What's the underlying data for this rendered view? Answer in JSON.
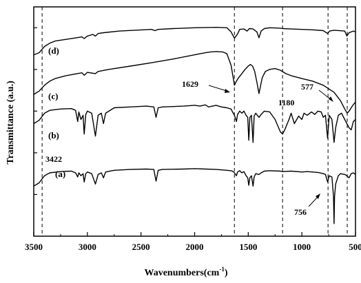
{
  "chart_data": {
    "type": "line",
    "xlabel": "Wavenumbers(cm",
    "xlabel_sup": "-1",
    "xlabel_close": ")",
    "ylabel": "Transmittance (a.u.)",
    "xlim": [
      3500,
      500
    ],
    "x_reversed": true,
    "xticks": [
      3500,
      3000,
      2500,
      2000,
      1500,
      1000,
      500
    ],
    "yticks_unlabeled": true,
    "reference_lines": [
      3422,
      1629,
      1180,
      756,
      577
    ],
    "annotations": [
      {
        "text": "3422"
      },
      {
        "text": "1629"
      },
      {
        "text": "1180"
      },
      {
        "text": "577"
      },
      {
        "text": "756"
      }
    ],
    "series": [
      {
        "name": "(d)",
        "points": [
          [
            3500,
            4.35
          ],
          [
            3450,
            4.4
          ],
          [
            3400,
            4.55
          ],
          [
            3350,
            4.63
          ],
          [
            3300,
            4.68
          ],
          [
            3200,
            4.72
          ],
          [
            3100,
            4.76
          ],
          [
            3050,
            4.78
          ],
          [
            3030,
            4.74
          ],
          [
            3000,
            4.8
          ],
          [
            2950,
            4.84
          ],
          [
            2925,
            4.8
          ],
          [
            2900,
            4.86
          ],
          [
            2850,
            4.88
          ],
          [
            2700,
            4.92
          ],
          [
            2400,
            4.96
          ],
          [
            2370,
            4.93
          ],
          [
            2340,
            4.96
          ],
          [
            2200,
            4.98
          ],
          [
            2000,
            5.0
          ],
          [
            1800,
            5.01
          ],
          [
            1700,
            5.0
          ],
          [
            1660,
            4.9
          ],
          [
            1629,
            4.75
          ],
          [
            1600,
            4.85
          ],
          [
            1580,
            4.96
          ],
          [
            1540,
            4.97
          ],
          [
            1510,
            4.92
          ],
          [
            1490,
            4.98
          ],
          [
            1455,
            4.97
          ],
          [
            1420,
            4.9
          ],
          [
            1400,
            4.76
          ],
          [
            1380,
            4.92
          ],
          [
            1350,
            4.98
          ],
          [
            1300,
            5.0
          ],
          [
            1200,
            4.99
          ],
          [
            1180,
            4.98
          ],
          [
            1100,
            4.97
          ],
          [
            1000,
            4.96
          ],
          [
            900,
            4.95
          ],
          [
            800,
            4.93
          ],
          [
            760,
            4.86
          ],
          [
            740,
            4.92
          ],
          [
            700,
            4.94
          ],
          [
            600,
            4.92
          ],
          [
            580,
            4.8
          ],
          [
            560,
            4.88
          ],
          [
            520,
            4.92
          ],
          [
            500,
            4.9
          ]
        ]
      },
      {
        "name": "(c)",
        "points": [
          [
            3500,
            3.4
          ],
          [
            3450,
            3.48
          ],
          [
            3400,
            3.62
          ],
          [
            3350,
            3.72
          ],
          [
            3300,
            3.78
          ],
          [
            3200,
            3.85
          ],
          [
            3050,
            3.92
          ],
          [
            3030,
            3.86
          ],
          [
            3000,
            3.93
          ],
          [
            2925,
            3.9
          ],
          [
            2900,
            3.95
          ],
          [
            2800,
            4.0
          ],
          [
            2600,
            4.08
          ],
          [
            2400,
            4.16
          ],
          [
            2200,
            4.25
          ],
          [
            2000,
            4.35
          ],
          [
            1900,
            4.4
          ],
          [
            1850,
            4.42
          ],
          [
            1800,
            4.43
          ],
          [
            1740,
            4.42
          ],
          [
            1700,
            4.38
          ],
          [
            1660,
            4.1
          ],
          [
            1640,
            3.8
          ],
          [
            1629,
            3.62
          ],
          [
            1610,
            3.72
          ],
          [
            1590,
            3.8
          ],
          [
            1560,
            3.9
          ],
          [
            1530,
            4.0
          ],
          [
            1500,
            4.08
          ],
          [
            1480,
            4.12
          ],
          [
            1460,
            4.08
          ],
          [
            1440,
            3.95
          ],
          [
            1420,
            3.7
          ],
          [
            1400,
            3.42
          ],
          [
            1390,
            3.55
          ],
          [
            1370,
            3.8
          ],
          [
            1340,
            3.95
          ],
          [
            1300,
            4.0
          ],
          [
            1250,
            4.02
          ],
          [
            1200,
            3.98
          ],
          [
            1150,
            3.9
          ],
          [
            1100,
            3.85
          ],
          [
            1000,
            3.78
          ],
          [
            900,
            3.72
          ],
          [
            800,
            3.62
          ],
          [
            700,
            3.45
          ],
          [
            640,
            3.25
          ],
          [
            600,
            3.05
          ],
          [
            577,
            2.95
          ],
          [
            560,
            3.0
          ],
          [
            530,
            3.12
          ],
          [
            500,
            3.22
          ]
        ]
      },
      {
        "name": "(b)",
        "points": [
          [
            3500,
            2.7
          ],
          [
            3450,
            2.78
          ],
          [
            3400,
            2.95
          ],
          [
            3350,
            3.02
          ],
          [
            3250,
            3.05
          ],
          [
            3150,
            3.06
          ],
          [
            3110,
            3.02
          ],
          [
            3090,
            2.75
          ],
          [
            3080,
            2.98
          ],
          [
            3060,
            2.8
          ],
          [
            3040,
            2.9
          ],
          [
            3030,
            2.45
          ],
          [
            3015,
            2.92
          ],
          [
            3000,
            3.0
          ],
          [
            2960,
            2.95
          ],
          [
            2925,
            2.4
          ],
          [
            2900,
            2.9
          ],
          [
            2870,
            2.95
          ],
          [
            2850,
            2.7
          ],
          [
            2830,
            2.95
          ],
          [
            2750,
            3.08
          ],
          [
            2600,
            3.1
          ],
          [
            2450,
            3.12
          ],
          [
            2380,
            3.1
          ],
          [
            2360,
            2.85
          ],
          [
            2340,
            3.08
          ],
          [
            2300,
            3.1
          ],
          [
            2100,
            3.12
          ],
          [
            2000,
            3.14
          ],
          [
            1950,
            3.12
          ],
          [
            1900,
            3.15
          ],
          [
            1870,
            3.1
          ],
          [
            1800,
            3.14
          ],
          [
            1750,
            3.1
          ],
          [
            1700,
            3.08
          ],
          [
            1660,
            3.05
          ],
          [
            1640,
            2.95
          ],
          [
            1629,
            2.9
          ],
          [
            1610,
            2.75
          ],
          [
            1600,
            2.92
          ],
          [
            1580,
            3.0
          ],
          [
            1560,
            2.95
          ],
          [
            1540,
            3.0
          ],
          [
            1520,
            2.9
          ],
          [
            1505,
            2.85
          ],
          [
            1495,
            2.3
          ],
          [
            1485,
            2.85
          ],
          [
            1470,
            2.9
          ],
          [
            1455,
            2.25
          ],
          [
            1445,
            2.88
          ],
          [
            1430,
            2.95
          ],
          [
            1400,
            2.85
          ],
          [
            1380,
            2.92
          ],
          [
            1350,
            3.0
          ],
          [
            1300,
            2.98
          ],
          [
            1250,
            2.8
          ],
          [
            1200,
            2.5
          ],
          [
            1180,
            2.45
          ],
          [
            1160,
            2.55
          ],
          [
            1120,
            2.8
          ],
          [
            1100,
            2.95
          ],
          [
            1070,
            2.7
          ],
          [
            1030,
            2.88
          ],
          [
            1000,
            2.8
          ],
          [
            980,
            2.95
          ],
          [
            950,
            2.9
          ],
          [
            910,
            2.98
          ],
          [
            880,
            2.92
          ],
          [
            850,
            3.0
          ],
          [
            820,
            2.98
          ],
          [
            800,
            2.85
          ],
          [
            780,
            2.9
          ],
          [
            760,
            2.35
          ],
          [
            745,
            2.9
          ],
          [
            720,
            2.8
          ],
          [
            700,
            2.25
          ],
          [
            685,
            2.6
          ],
          [
            660,
            2.9
          ],
          [
            630,
            2.95
          ],
          [
            600,
            2.8
          ],
          [
            580,
            2.7
          ],
          [
            560,
            2.6
          ],
          [
            540,
            2.55
          ],
          [
            520,
            2.75
          ],
          [
            500,
            2.8
          ]
        ]
      },
      {
        "name": "(a)",
        "points": [
          [
            3500,
            1.2
          ],
          [
            3450,
            1.28
          ],
          [
            3400,
            1.45
          ],
          [
            3350,
            1.52
          ],
          [
            3250,
            1.55
          ],
          [
            3150,
            1.56
          ],
          [
            3110,
            1.52
          ],
          [
            3090,
            1.42
          ],
          [
            3080,
            1.52
          ],
          [
            3060,
            1.45
          ],
          [
            3040,
            1.5
          ],
          [
            3030,
            1.3
          ],
          [
            3015,
            1.5
          ],
          [
            3000,
            1.54
          ],
          [
            2960,
            1.5
          ],
          [
            2925,
            1.25
          ],
          [
            2900,
            1.48
          ],
          [
            2870,
            1.52
          ],
          [
            2850,
            1.4
          ],
          [
            2830,
            1.54
          ],
          [
            2750,
            1.58
          ],
          [
            2600,
            1.6
          ],
          [
            2450,
            1.61
          ],
          [
            2380,
            1.6
          ],
          [
            2360,
            1.32
          ],
          [
            2340,
            1.58
          ],
          [
            2300,
            1.6
          ],
          [
            2100,
            1.61
          ],
          [
            2000,
            1.62
          ],
          [
            1900,
            1.61
          ],
          [
            1800,
            1.6
          ],
          [
            1700,
            1.58
          ],
          [
            1660,
            1.57
          ],
          [
            1640,
            1.55
          ],
          [
            1629,
            1.52
          ],
          [
            1610,
            1.45
          ],
          [
            1600,
            1.54
          ],
          [
            1580,
            1.57
          ],
          [
            1560,
            1.52
          ],
          [
            1540,
            1.55
          ],
          [
            1520,
            1.45
          ],
          [
            1505,
            1.4
          ],
          [
            1495,
            1.22
          ],
          [
            1485,
            1.4
          ],
          [
            1470,
            1.45
          ],
          [
            1455,
            1.2
          ],
          [
            1445,
            1.42
          ],
          [
            1430,
            1.5
          ],
          [
            1400,
            1.48
          ],
          [
            1380,
            1.52
          ],
          [
            1350,
            1.56
          ],
          [
            1300,
            1.57
          ],
          [
            1200,
            1.56
          ],
          [
            1180,
            1.55
          ],
          [
            1100,
            1.56
          ],
          [
            1000,
            1.54
          ],
          [
            950,
            1.55
          ],
          [
            900,
            1.54
          ],
          [
            850,
            1.53
          ],
          [
            800,
            1.5
          ],
          [
            780,
            1.48
          ],
          [
            760,
            1.3
          ],
          [
            745,
            1.45
          ],
          [
            720,
            1.42
          ],
          [
            705,
            0.95
          ],
          [
            700,
            0.3
          ],
          [
            695,
            0.95
          ],
          [
            685,
            1.25
          ],
          [
            660,
            1.45
          ],
          [
            640,
            1.5
          ],
          [
            600,
            1.48
          ],
          [
            580,
            1.45
          ],
          [
            560,
            1.4
          ],
          [
            540,
            1.5
          ],
          [
            520,
            1.52
          ],
          [
            500,
            1.48
          ]
        ]
      }
    ]
  }
}
